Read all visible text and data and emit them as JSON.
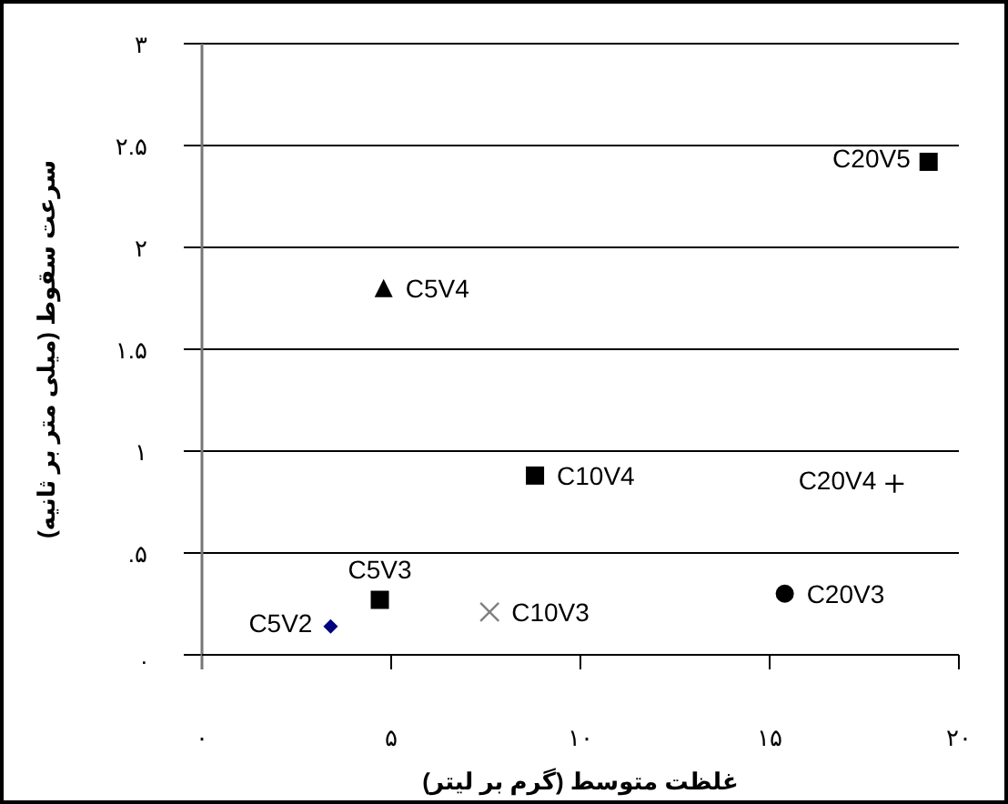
{
  "chart_data": {
    "type": "scatter",
    "xlabel": "غلظت متوسط (گرم بر لیتر)",
    "ylabel": "سرعت سقوط (میلی متر بر ثانیه)",
    "xlim": [
      0,
      20
    ],
    "xticks": [
      {
        "value": 0,
        "label": "۰"
      },
      {
        "value": 5,
        "label": "۵"
      },
      {
        "value": 10,
        "label": "۱۰"
      },
      {
        "value": 15,
        "label": "۱۵"
      },
      {
        "value": 20,
        "label": "۲۰"
      }
    ],
    "ylim": [
      0,
      3
    ],
    "yticks": [
      {
        "value": 0,
        "label": "."
      },
      {
        "value": 0.5,
        "label": ".۵"
      },
      {
        "value": 1,
        "label": "۱"
      },
      {
        "value": 1.5,
        "label": "۱.۵"
      },
      {
        "value": 2,
        "label": "۲"
      },
      {
        "value": 2.5,
        "label": "۲.۵"
      },
      {
        "value": 3,
        "label": "۳"
      }
    ],
    "grid": "y",
    "series": [
      {
        "name": "C5V2",
        "marker": "diamond",
        "color": "#000080",
        "x": [
          3.4
        ],
        "values": [
          0.14
        ]
      },
      {
        "name": "C5V3",
        "marker": "square",
        "color": "#000000",
        "x": [
          4.7
        ],
        "values": [
          0.27
        ]
      },
      {
        "name": "C5V4",
        "marker": "triangle",
        "color": "#000000",
        "x": [
          4.8
        ],
        "values": [
          1.8
        ]
      },
      {
        "name": "C10V3",
        "marker": "x",
        "color": "#808080",
        "x": [
          7.6
        ],
        "values": [
          0.21
        ]
      },
      {
        "name": "C10V4",
        "marker": "square",
        "color": "#000000",
        "x": [
          8.8
        ],
        "values": [
          0.88
        ]
      },
      {
        "name": "C20V3",
        "marker": "circle",
        "color": "#000000",
        "x": [
          15.4
        ],
        "values": [
          0.3
        ]
      },
      {
        "name": "C20V4",
        "marker": "cross",
        "color": "#000000",
        "x": [
          18.3
        ],
        "values": [
          0.84
        ]
      },
      {
        "name": "C20V5",
        "marker": "square",
        "color": "#000000",
        "x": [
          19.2
        ],
        "values": [
          2.42
        ]
      }
    ]
  }
}
